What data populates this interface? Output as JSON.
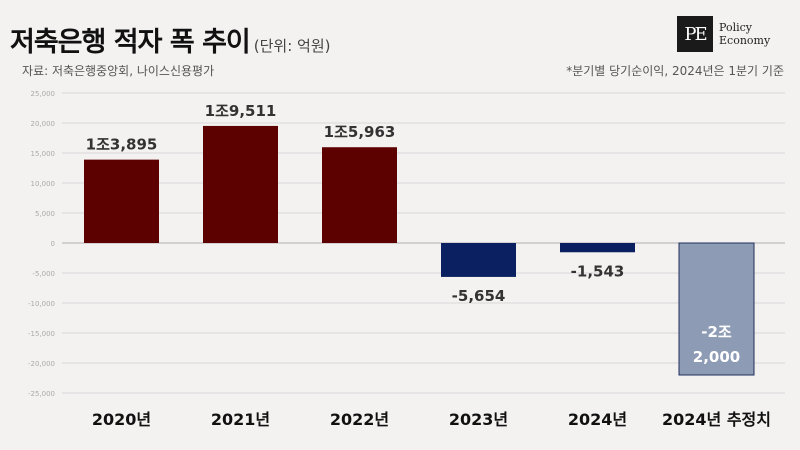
{
  "header": {
    "title": "저축은행 적자 폭 추이",
    "unit": "(단위: 억원)",
    "source": "자료: 저축은행중앙회, 나이스신용평가",
    "note": "*분기별 당기순이익, 2024년은 1분기 기준"
  },
  "logo": {
    "mark": "PE",
    "line1": "Policy",
    "line2": "Economy"
  },
  "colors": {
    "positive": "#5c0000",
    "negative": "#0b2060",
    "estimate": "#8e9bb5",
    "grid": "#d9d6d6",
    "axis": "#b0aeae"
  },
  "chart_data": {
    "type": "bar",
    "categories": [
      "2020년",
      "2021년",
      "2022년",
      "2023년",
      "2024년",
      "2024년 추정치"
    ],
    "values": [
      13895,
      19511,
      15963,
      -5654,
      -1543,
      -22000
    ],
    "labels": [
      [
        "1조3,895"
      ],
      [
        "1조9,511"
      ],
      [
        "1조5,963"
      ],
      [
        "-5,654"
      ],
      [
        "-1,543"
      ],
      [
        "-2조",
        "2,000"
      ]
    ],
    "estimate_index": 5,
    "ylim": [
      -25000,
      25000
    ],
    "yticks": [
      25000,
      20000,
      15000,
      10000,
      5000,
      0,
      -5000,
      -10000,
      -15000,
      -20000,
      -25000
    ],
    "ytick_labels": [
      "25,000",
      "20,000",
      "15,000",
      "10,000",
      "5,000",
      "0",
      "-5,000",
      "-10,000",
      "-15,000",
      "-20,000",
      "-25,000"
    ],
    "grid": true
  }
}
